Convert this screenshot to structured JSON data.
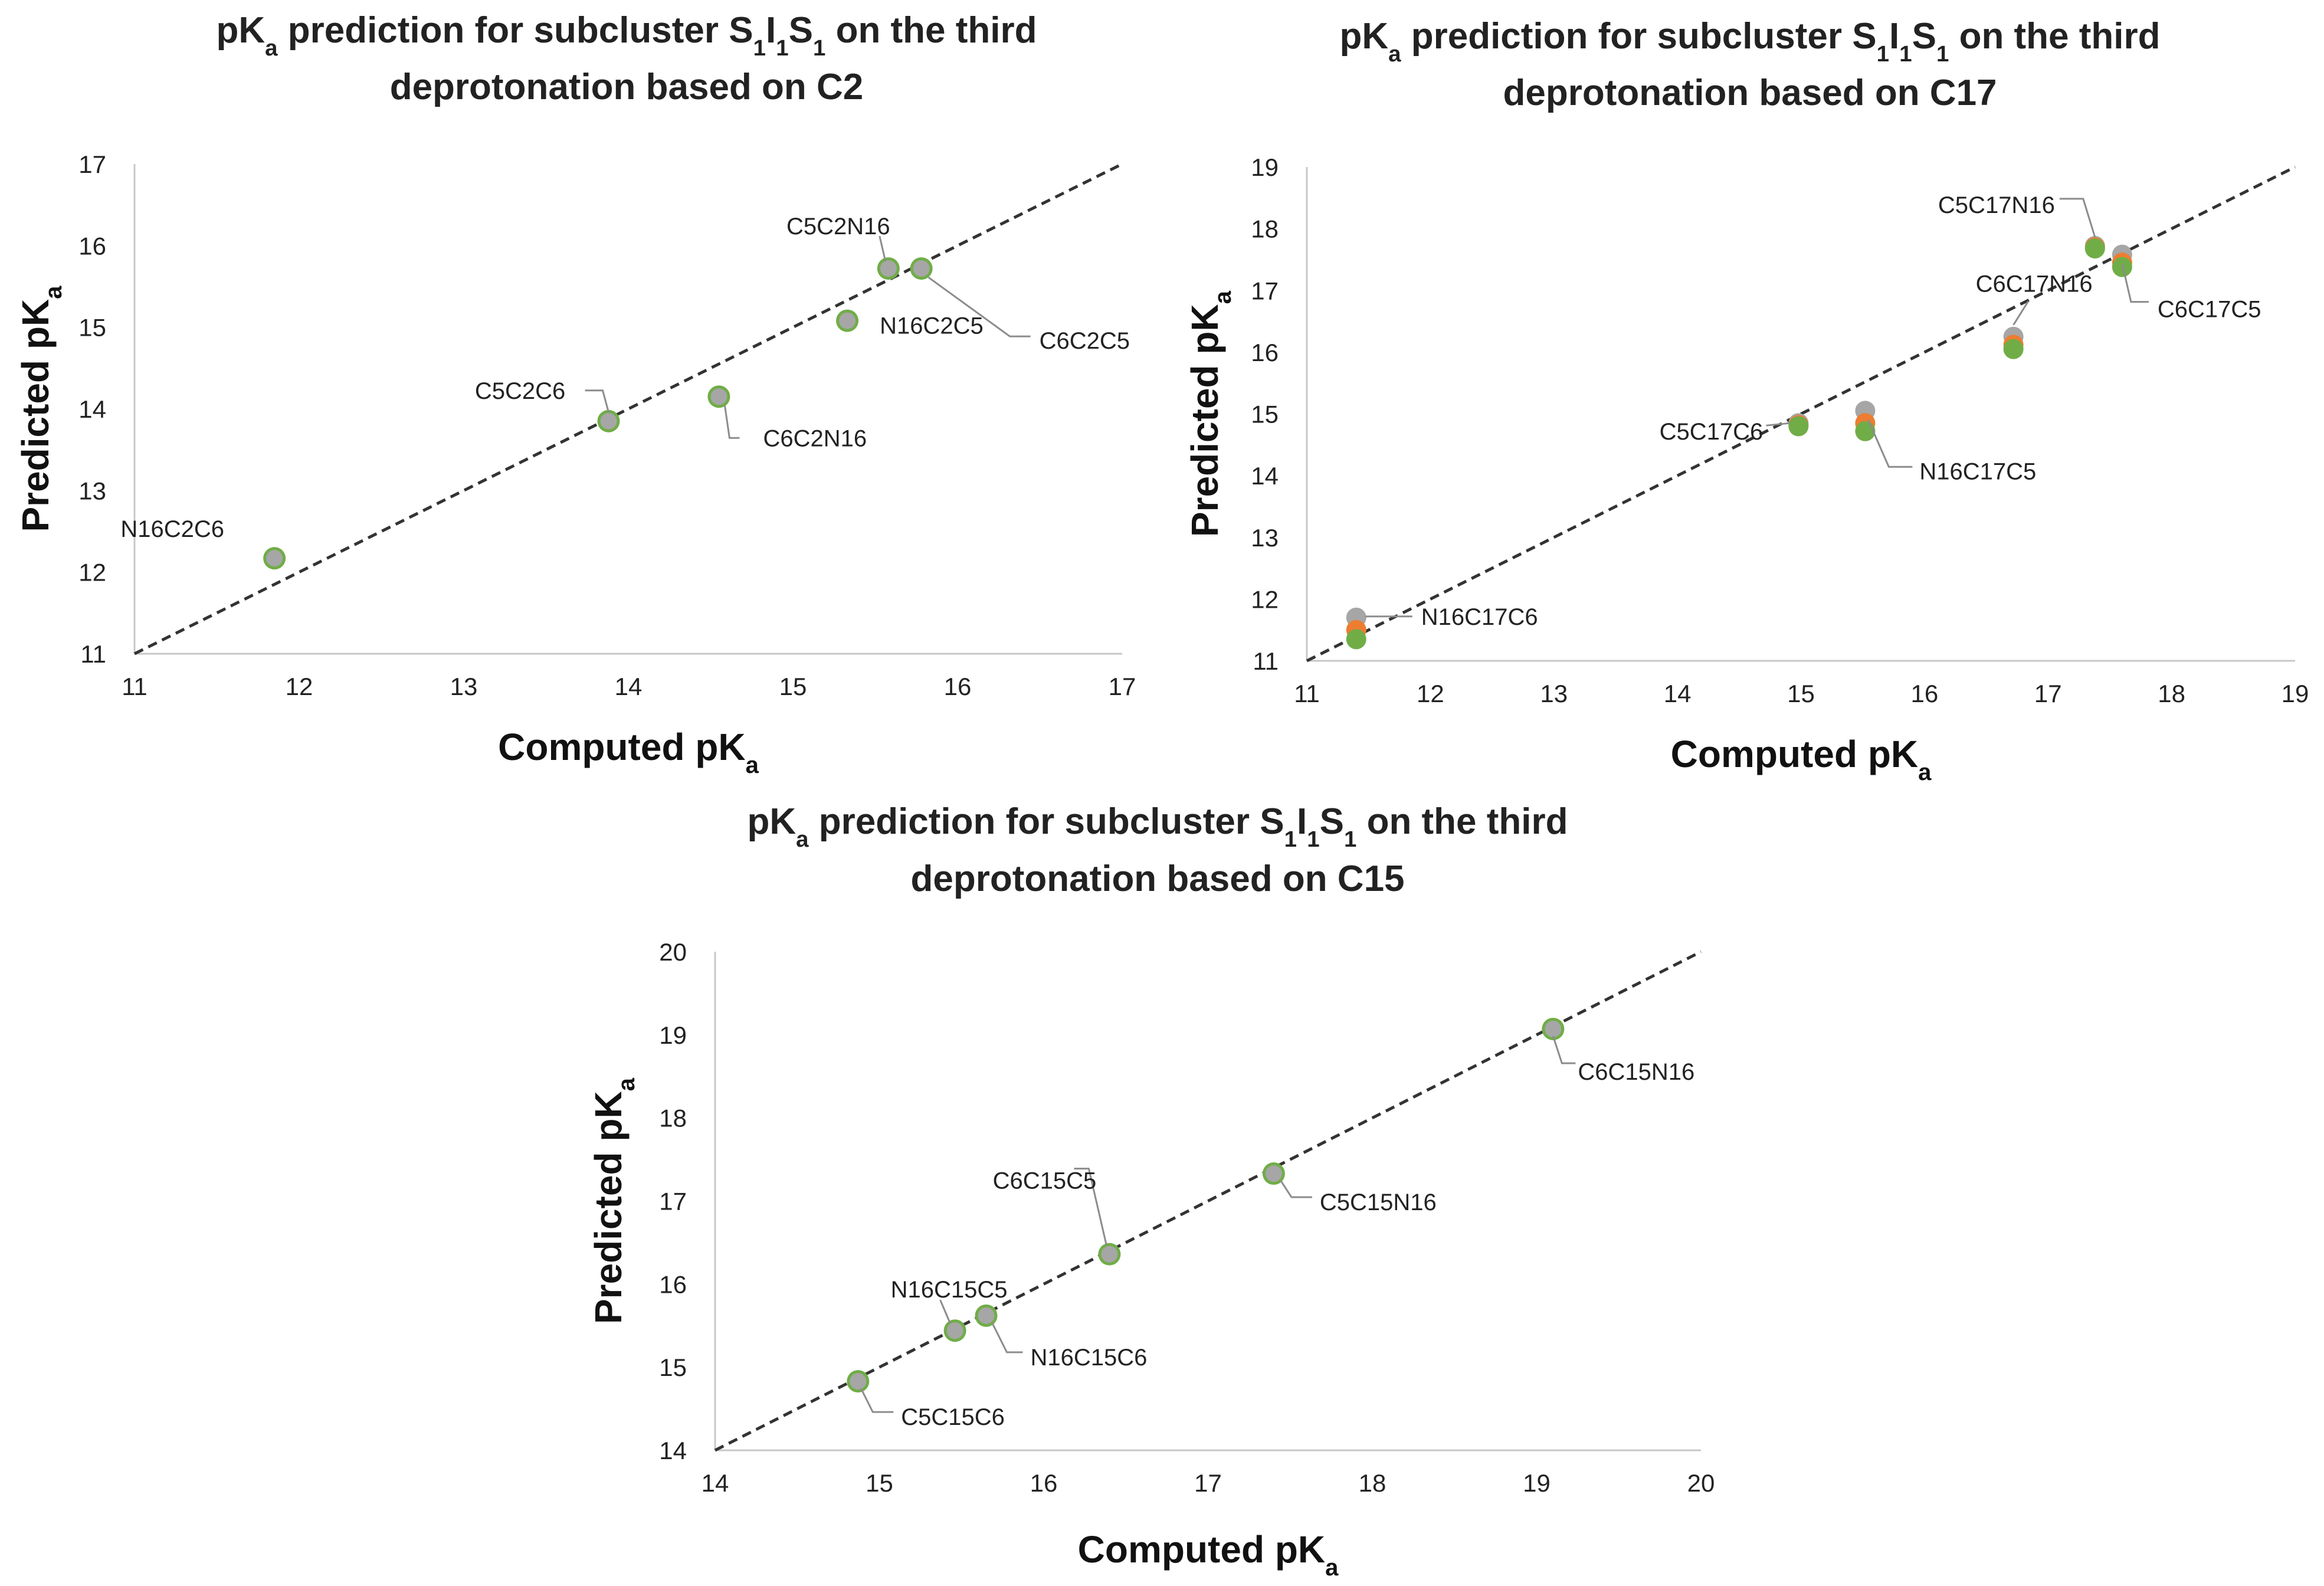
{
  "chart_data": [
    {
      "type": "scatter",
      "title": {
        "parts": [
          {
            "t": "pK"
          },
          {
            "t": "a",
            "sub": true
          },
          {
            "t": " prediction for subcluster S"
          },
          {
            "t": "1",
            "sub": true
          },
          {
            "t": "I"
          },
          {
            "t": "1",
            "sub": true
          },
          {
            "t": "S"
          },
          {
            "t": "1",
            "sub": true
          },
          {
            "t": " on the third"
          }
        ],
        "line2": "deprotonation based on C2"
      },
      "xlabel": {
        "main": "Computed pK",
        "sub": "a"
      },
      "ylabel": {
        "main": "Predicted pK",
        "sub": "a"
      },
      "xlim": [
        11,
        17
      ],
      "ylim": [
        11,
        17
      ],
      "xticks": [
        "11",
        "12",
        "13",
        "14",
        "15",
        "16",
        "17"
      ],
      "yticks": [
        "11",
        "12",
        "13",
        "14",
        "15",
        "16",
        "17"
      ],
      "reference_line": "y = x",
      "series_colors": {
        "gray": "#a6a6a6",
        "orange": "#ed7d31",
        "green": "#70ad47"
      },
      "points": [
        {
          "label": "N16C2C6",
          "x": 11.85,
          "y": 12.17
        },
        {
          "label": "C5C2C6",
          "x": 13.88,
          "y": 13.85
        },
        {
          "label": "C6C2N16",
          "x": 14.55,
          "y": 14.15
        },
        {
          "label": "N16C2C5",
          "x": 15.33,
          "y": 15.08
        },
        {
          "label": "C5C2N16",
          "x": 15.58,
          "y": 15.72
        },
        {
          "label": "C6C2C5",
          "x": 15.78,
          "y": 15.72
        }
      ]
    },
    {
      "type": "scatter",
      "title": {
        "parts": [
          {
            "t": "pK"
          },
          {
            "t": "a",
            "sub": true
          },
          {
            "t": " prediction for subcluster S"
          },
          {
            "t": "1",
            "sub": true
          },
          {
            "t": "I"
          },
          {
            "t": "1",
            "sub": true
          },
          {
            "t": "S"
          },
          {
            "t": "1",
            "sub": true
          },
          {
            "t": " on the third"
          }
        ],
        "line2": "deprotonation based on C17"
      },
      "xlabel": {
        "main": "Computed pK",
        "sub": "a"
      },
      "ylabel": {
        "main": "Predicted pK",
        "sub": "a"
      },
      "xlim": [
        11,
        19
      ],
      "ylim": [
        11,
        19
      ],
      "xticks": [
        "11",
        "12",
        "13",
        "14",
        "15",
        "16",
        "17",
        "18",
        "19"
      ],
      "yticks": [
        "11",
        "12",
        "13",
        "14",
        "15",
        "16",
        "17",
        "18",
        "19"
      ],
      "reference_line": "y = x",
      "series_colors": {
        "gray": "#a6a6a6",
        "orange": "#ed7d31",
        "green": "#70ad47"
      },
      "points": [
        {
          "label": "N16C17C6",
          "x": 11.4,
          "gray": 11.7,
          "orange": 11.5,
          "green": 11.35
        },
        {
          "label": "C5C17C6",
          "x": 14.98,
          "gray": 14.85,
          "orange": 14.82,
          "green": 14.8
        },
        {
          "label": "N16C17C5",
          "x": 15.52,
          "gray": 15.05,
          "orange": 14.85,
          "green": 14.72
        },
        {
          "label": "C6C17N16",
          "x": 16.72,
          "gray": 16.25,
          "orange": 16.12,
          "green": 16.05
        },
        {
          "label": "C5C17N16",
          "x": 17.38,
          "gray": 17.72,
          "orange": 17.7,
          "green": 17.68
        },
        {
          "label": "C6C17C5",
          "x": 17.6,
          "gray": 17.58,
          "orange": 17.45,
          "green": 17.38
        }
      ]
    },
    {
      "type": "scatter",
      "title": {
        "parts": [
          {
            "t": "pK"
          },
          {
            "t": "a",
            "sub": true
          },
          {
            "t": " prediction for subcluster S"
          },
          {
            "t": "1",
            "sub": true
          },
          {
            "t": "I"
          },
          {
            "t": "1",
            "sub": true
          },
          {
            "t": "S"
          },
          {
            "t": "1",
            "sub": true
          },
          {
            "t": " on the third"
          }
        ],
        "line2": "deprotonation based on C15"
      },
      "xlabel": {
        "main": "Computed pK",
        "sub": "a"
      },
      "ylabel": {
        "main": "Predicted pK",
        "sub": "a"
      },
      "xlim": [
        14,
        20
      ],
      "ylim": [
        14,
        20
      ],
      "xticks": [
        "14",
        "15",
        "16",
        "17",
        "18",
        "19",
        "20"
      ],
      "yticks": [
        "14",
        "15",
        "16",
        "17",
        "18",
        "19",
        "20"
      ],
      "reference_line": "y = x",
      "series_colors": {
        "gray": "#a6a6a6",
        "orange": "#ed7d31",
        "green": "#70ad47"
      },
      "points": [
        {
          "label": "C5C15C6",
          "x": 14.87,
          "y": 14.83
        },
        {
          "label": "N16C15C5",
          "x": 15.46,
          "y": 15.44
        },
        {
          "label": "N16C15C6",
          "x": 15.65,
          "y": 15.62
        },
        {
          "label": "C6C15C5",
          "x": 16.4,
          "y": 16.36
        },
        {
          "label": "C5C15N16",
          "x": 17.4,
          "y": 17.33
        },
        {
          "label": "C6C15N16",
          "x": 19.1,
          "y": 19.07
        }
      ]
    }
  ]
}
